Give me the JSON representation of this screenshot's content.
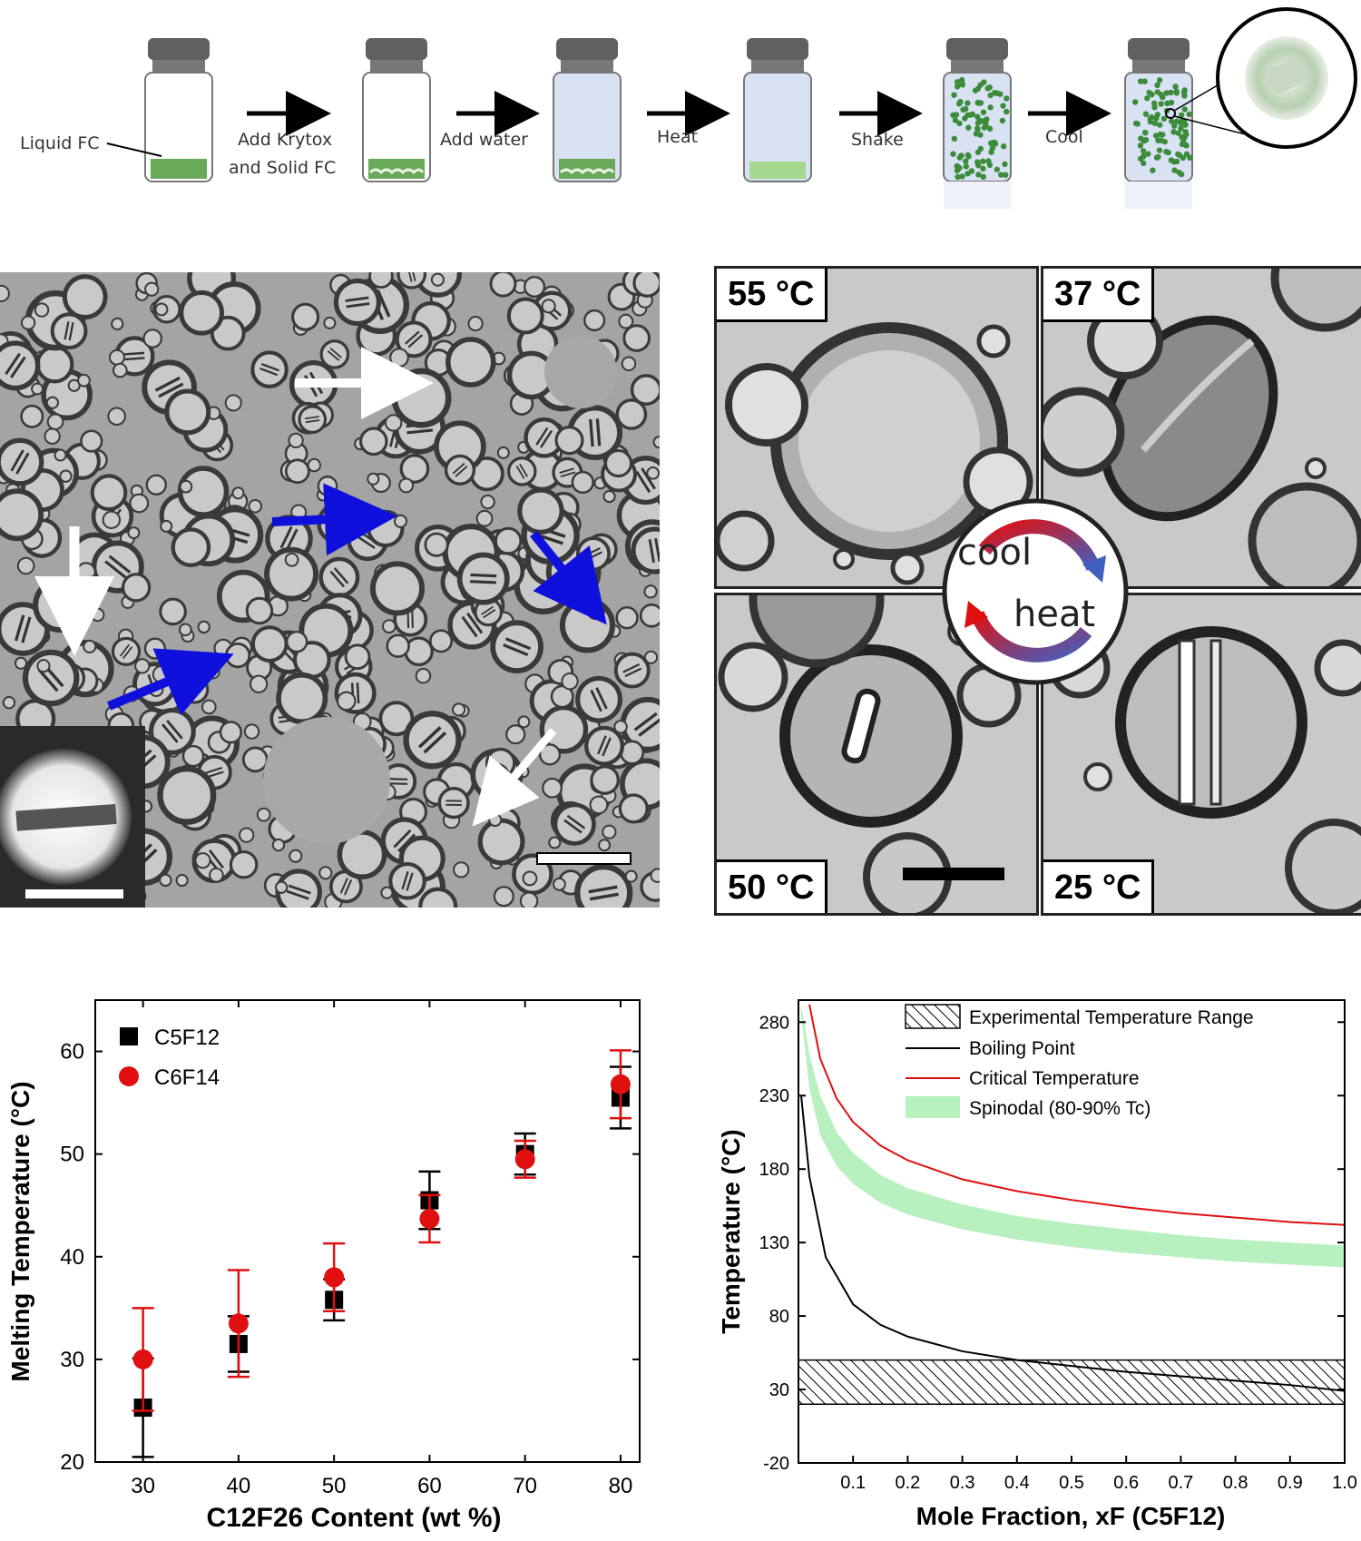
{
  "process": {
    "liquid_label": "Liquid FC",
    "steps": [
      "Add Krytox",
      "and Solid FC",
      "Add water",
      "Heat",
      "Shake",
      "Cool"
    ]
  },
  "micrograph": {},
  "temperature_panels": {
    "tl": "55 °C",
    "tr": "37 °C",
    "bl": "50 °C",
    "br": "25 °C",
    "cycle_top": "cool",
    "cycle_bottom": "heat"
  },
  "colors": {
    "accent_red": "#e01010",
    "green_band": "#b8f0bf",
    "arrow_blue": "#1010dd"
  },
  "chart_data": [
    {
      "type": "scatter",
      "title": "",
      "xlabel": "C12F26 Content (wt %)",
      "ylabel": "Melting Temperature (°C)",
      "xlim": [
        25,
        82
      ],
      "ylim": [
        20,
        65
      ],
      "xticks": [
        30,
        40,
        50,
        60,
        70,
        80
      ],
      "yticks": [
        20,
        30,
        40,
        50,
        60
      ],
      "legend_placement": "top-left",
      "series": [
        {
          "name": "C5F12",
          "marker": "square",
          "color": "#000000",
          "x": [
            30,
            40,
            50,
            60,
            70,
            80
          ],
          "y": [
            25.3,
            31.5,
            35.8,
            45.5,
            50.0,
            55.5
          ],
          "err": [
            4.8,
            2.7,
            2.0,
            2.8,
            2.0,
            3.0
          ]
        },
        {
          "name": "C6F14",
          "marker": "circle",
          "color": "#e01010",
          "x": [
            30,
            40,
            50,
            60,
            70,
            80
          ],
          "y": [
            30.0,
            33.5,
            38.0,
            43.7,
            49.5,
            56.8
          ],
          "err": [
            5.0,
            5.2,
            3.3,
            2.3,
            1.8,
            3.3
          ]
        }
      ]
    },
    {
      "type": "line",
      "title": "",
      "xlabel": "Mole Fraction, xF (C5F12)",
      "ylabel": "Temperature (°C)",
      "xlim": [
        0,
        1.0
      ],
      "ylim": [
        -20,
        295
      ],
      "xticks": [
        0.1,
        0.2,
        0.3,
        0.4,
        0.5,
        0.6,
        0.7,
        0.8,
        0.9,
        1.0
      ],
      "yticks": [
        -20,
        30,
        80,
        130,
        180,
        230,
        280
      ],
      "legend_placement": "top-right",
      "legend": [
        "Experimental Temperature Range",
        "Boiling Point",
        "Critical Temperature",
        "Spinodal (80-90% Tc)"
      ],
      "experimental_range": [
        20,
        50
      ],
      "series": [
        {
          "name": "Boiling Point",
          "color": "#000000",
          "x": [
            0.005,
            0.02,
            0.05,
            0.1,
            0.15,
            0.2,
            0.3,
            0.4,
            0.5,
            0.6,
            0.7,
            0.8,
            0.9,
            1.0
          ],
          "y": [
            230,
            175,
            120,
            88,
            74,
            66,
            56,
            50,
            46,
            42,
            39,
            36,
            33,
            29
          ]
        },
        {
          "name": "Critical Temperature",
          "color": "#e01010",
          "x": [
            0.02,
            0.04,
            0.07,
            0.1,
            0.15,
            0.2,
            0.3,
            0.4,
            0.5,
            0.6,
            0.7,
            0.8,
            0.9,
            1.0
          ],
          "y": [
            292,
            255,
            228,
            212,
            196,
            186,
            173,
            165,
            159,
            154,
            150,
            147,
            144,
            142
          ]
        },
        {
          "name": "Spinodal (80-90% Tc)",
          "color": "#b8f0bf",
          "x": [
            0.005,
            0.02,
            0.04,
            0.07,
            0.1,
            0.15,
            0.2,
            0.3,
            0.4,
            0.5,
            0.6,
            0.7,
            0.8,
            0.9,
            1.0
          ],
          "upper": [
            292,
            258,
            230,
            205,
            191,
            176,
            167,
            156,
            148,
            143,
            139,
            135,
            132,
            130,
            128
          ],
          "lower": [
            285,
            235,
            203,
            182,
            170,
            157,
            149,
            139,
            132,
            127,
            123,
            120,
            117,
            115,
            113
          ]
        }
      ]
    }
  ]
}
